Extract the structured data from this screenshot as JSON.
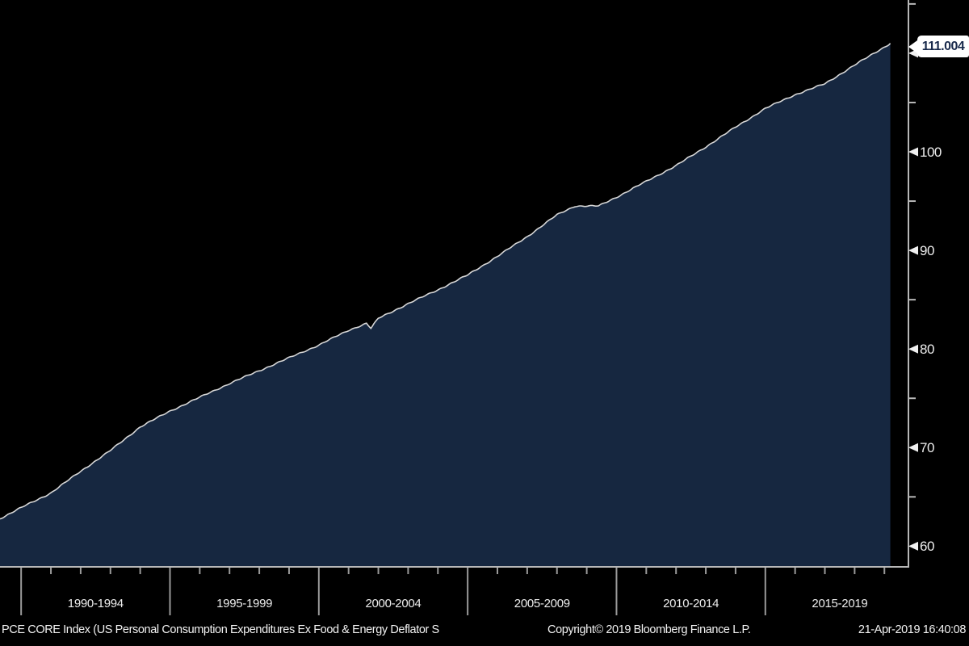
{
  "window": {
    "background": "#000000"
  },
  "chart_data": {
    "type": "area",
    "title": "PCE CORE Index (US Personal Consumption Expenditures Ex Food & Energy Deflator S",
    "legend_position": "none",
    "grid": false,
    "xlim": [
      1989.29,
      2019.78
    ],
    "ylim": [
      57.9,
      115.4
    ],
    "x_major_ticks": [
      1990,
      1995,
      2000,
      2005,
      2010,
      2015
    ],
    "x_minor_tick_years": [
      1990,
      1991,
      1992,
      1993,
      1994,
      1995,
      1996,
      1997,
      1998,
      1999,
      2000,
      2001,
      2002,
      2003,
      2004,
      2005,
      2006,
      2007,
      2008,
      2009,
      2010,
      2011,
      2012,
      2013,
      2014,
      2015,
      2016,
      2017,
      2018,
      2019
    ],
    "x_tick_labels": [
      "1990-1994",
      "1995-1999",
      "2000-2004",
      "2005-2009",
      "2010-2014",
      "2015-2019"
    ],
    "y_major_ticks": [
      60,
      70,
      80,
      90,
      100,
      110
    ],
    "y_minor_ticks": [
      65,
      75,
      85,
      95,
      105,
      115
    ],
    "last_value": "111.004",
    "series": [
      {
        "name": "PCE CORE Index",
        "points": [
          [
            1989.29,
            62.8
          ],
          [
            1990,
            63.9
          ],
          [
            1991,
            65.4
          ],
          [
            1992,
            67.6
          ],
          [
            1993,
            69.7
          ],
          [
            1994,
            72.1
          ],
          [
            1995,
            73.7
          ],
          [
            1996,
            75.1
          ],
          [
            1997,
            76.5
          ],
          [
            1998,
            77.8
          ],
          [
            1999,
            79.1
          ],
          [
            2000,
            80.4
          ],
          [
            2001,
            81.9
          ],
          [
            2001.6,
            82.6
          ],
          [
            2001.75,
            82.1
          ],
          [
            2002,
            83.1
          ],
          [
            2003,
            84.6
          ],
          [
            2004,
            86.0
          ],
          [
            2005,
            87.5
          ],
          [
            2006,
            89.4
          ],
          [
            2007,
            91.4
          ],
          [
            2008,
            93.6
          ],
          [
            2008.6,
            94.5
          ],
          [
            2009.4,
            94.5
          ],
          [
            2010,
            95.4
          ],
          [
            2011,
            97.0
          ],
          [
            2012,
            98.6
          ],
          [
            2013,
            100.5
          ],
          [
            2014,
            102.5
          ],
          [
            2015,
            104.4
          ],
          [
            2016,
            105.8
          ],
          [
            2017,
            106.9
          ],
          [
            2018,
            108.8
          ],
          [
            2019.2,
            111.004
          ]
        ]
      }
    ],
    "colors": {
      "fill": "#162740",
      "line": "#d6d6d6",
      "axis": "#b8b8b8",
      "tick": "#9a9a9a",
      "tick_arrow": "#f0f0f0",
      "label": "#ededed",
      "callout_bg": "#ffffff",
      "callout_text": "#18294b"
    }
  },
  "callout": {
    "value": "111.004"
  },
  "footer": {
    "left": "PCE CORE Index (US Personal Consumption Expenditures Ex Food & Energy Deflator S",
    "copyright": "Copyright© 2019 Bloomberg Finance L.P.",
    "timestamp": "21-Apr-2019 16:40:08"
  }
}
